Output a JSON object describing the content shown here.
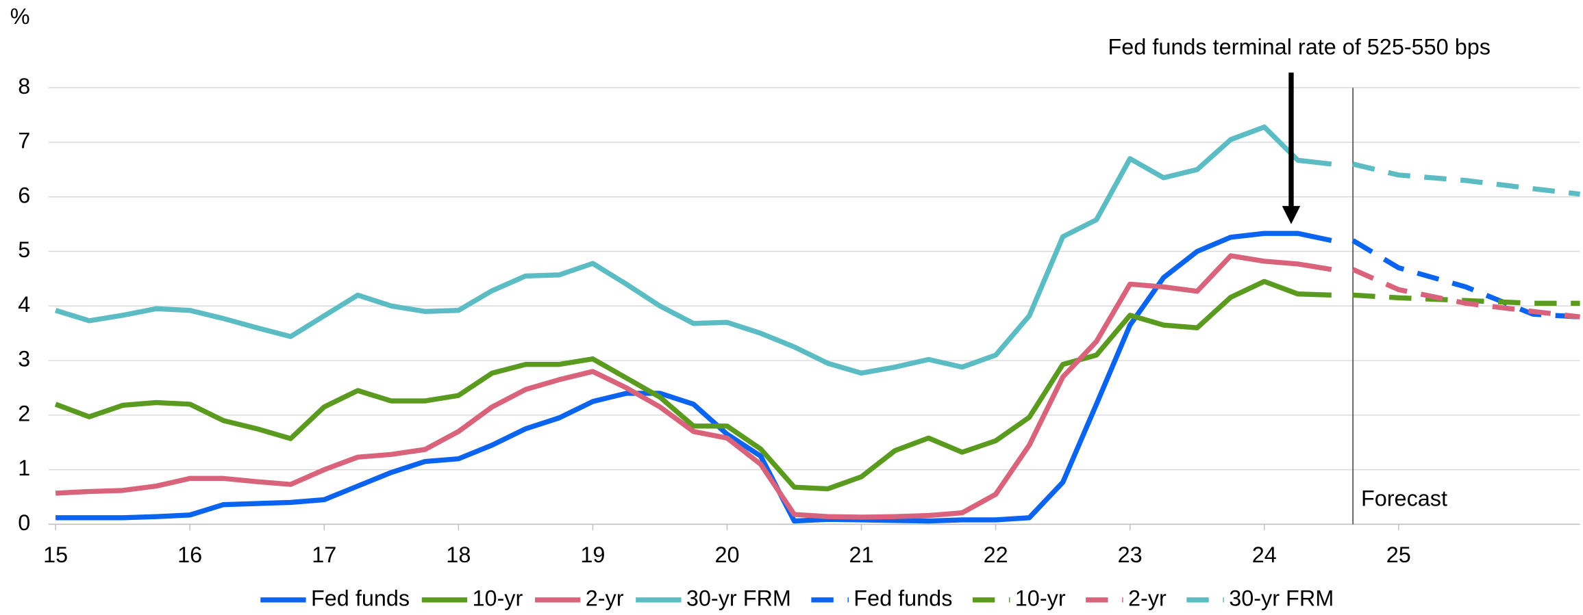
{
  "chart_data": {
    "type": "line",
    "y_unit": "%",
    "annotation": {
      "text": "Fed funds terminal rate of 525-550 bps",
      "x": 24.2,
      "y": 5.5
    },
    "forecast": {
      "label": "Forecast",
      "x": 24.66
    },
    "xlim": [
      15,
      26.35
    ],
    "xticks": [
      15,
      16,
      17,
      18,
      19,
      20,
      21,
      22,
      23,
      24,
      25
    ],
    "ylim": [
      0,
      8
    ],
    "yticks": [
      0,
      1,
      2,
      3,
      4,
      5,
      6,
      7,
      8
    ],
    "grid": true,
    "legend": "bottom",
    "series": [
      {
        "name": "Fed funds",
        "color": "#0a64f0",
        "dashed": false,
        "x": [
          15,
          15.25,
          15.5,
          15.75,
          16,
          16.25,
          16.5,
          16.75,
          17,
          17.25,
          17.5,
          17.75,
          18,
          18.25,
          18.5,
          18.75,
          19,
          19.25,
          19.5,
          19.75,
          20,
          20.25,
          20.5,
          20.75,
          21,
          21.25,
          21.5,
          21.75,
          22,
          22.25,
          22.5,
          22.75,
          23,
          23.25,
          23.5,
          23.75,
          24,
          24.25,
          24.5
        ],
        "values": [
          0.12,
          0.12,
          0.12,
          0.14,
          0.17,
          0.36,
          0.38,
          0.4,
          0.45,
          0.7,
          0.95,
          1.15,
          1.2,
          1.45,
          1.75,
          1.95,
          2.25,
          2.4,
          2.4,
          2.2,
          1.65,
          1.25,
          0.06,
          0.09,
          0.08,
          0.07,
          0.06,
          0.08,
          0.08,
          0.12,
          0.77,
          2.2,
          3.65,
          4.52,
          5.0,
          5.26,
          5.33,
          5.33,
          5.2
        ]
      },
      {
        "name": "10-yr",
        "color": "#5a9a1e",
        "dashed": false,
        "x": [
          15,
          15.25,
          15.5,
          15.75,
          16,
          16.25,
          16.5,
          16.75,
          17,
          17.25,
          17.5,
          17.75,
          18,
          18.25,
          18.5,
          18.75,
          19,
          19.25,
          19.5,
          19.75,
          20,
          20.25,
          20.5,
          20.75,
          21,
          21.25,
          21.5,
          21.75,
          22,
          22.25,
          22.5,
          22.75,
          23,
          23.25,
          23.5,
          23.75,
          24,
          24.25,
          24.5
        ],
        "values": [
          2.2,
          1.97,
          2.18,
          2.23,
          2.2,
          1.9,
          1.75,
          1.57,
          2.15,
          2.45,
          2.26,
          2.26,
          2.36,
          2.77,
          2.93,
          2.93,
          3.03,
          2.68,
          2.33,
          1.8,
          1.8,
          1.38,
          0.68,
          0.65,
          0.87,
          1.35,
          1.58,
          1.32,
          1.53,
          1.96,
          2.93,
          3.1,
          3.83,
          3.65,
          3.6,
          4.16,
          4.45,
          4.22,
          4.2
        ]
      },
      {
        "name": "2-yr",
        "color": "#d9637a",
        "dashed": false,
        "x": [
          15,
          15.25,
          15.5,
          15.75,
          16,
          16.25,
          16.5,
          16.75,
          17,
          17.25,
          17.5,
          17.75,
          18,
          18.25,
          18.5,
          18.75,
          19,
          19.25,
          19.5,
          19.75,
          20,
          20.25,
          20.5,
          20.75,
          21,
          21.25,
          21.5,
          21.75,
          22,
          22.25,
          22.5,
          22.75,
          23,
          23.25,
          23.5,
          23.75,
          24,
          24.25,
          24.5
        ],
        "values": [
          0.57,
          0.6,
          0.62,
          0.7,
          0.84,
          0.84,
          0.78,
          0.73,
          1.0,
          1.23,
          1.28,
          1.37,
          1.7,
          2.15,
          2.47,
          2.65,
          2.8,
          2.5,
          2.15,
          1.7,
          1.58,
          1.1,
          0.18,
          0.14,
          0.13,
          0.14,
          0.16,
          0.21,
          0.55,
          1.45,
          2.7,
          3.35,
          4.4,
          4.35,
          4.27,
          4.92,
          4.82,
          4.77,
          4.67
        ]
      },
      {
        "name": "30-yr FRM",
        "color": "#5bbcc4",
        "dashed": false,
        "x": [
          15,
          15.25,
          15.5,
          15.75,
          16,
          16.25,
          16.5,
          16.75,
          17,
          17.25,
          17.5,
          17.75,
          18,
          18.25,
          18.5,
          18.75,
          19,
          19.25,
          19.5,
          19.75,
          20,
          20.25,
          20.5,
          20.75,
          21,
          21.25,
          21.5,
          21.75,
          22,
          22.25,
          22.5,
          22.75,
          23,
          23.25,
          23.5,
          23.75,
          24,
          24.25,
          24.5
        ],
        "values": [
          3.92,
          3.73,
          3.83,
          3.95,
          3.92,
          3.77,
          3.6,
          3.44,
          3.82,
          4.2,
          4.0,
          3.9,
          3.92,
          4.28,
          4.55,
          4.57,
          4.78,
          4.4,
          4.0,
          3.68,
          3.7,
          3.5,
          3.25,
          2.95,
          2.77,
          2.88,
          3.02,
          2.88,
          3.1,
          3.82,
          5.27,
          5.58,
          6.7,
          6.35,
          6.5,
          7.05,
          7.28,
          6.67,
          6.6
        ]
      },
      {
        "name": "Fed funds",
        "color": "#0a64f0",
        "dashed": true,
        "x": [
          24.66,
          25,
          25.5,
          26,
          26.35
        ],
        "values": [
          5.2,
          4.7,
          4.35,
          3.85,
          3.8
        ]
      },
      {
        "name": "10-yr",
        "color": "#5a9a1e",
        "dashed": true,
        "x": [
          24.66,
          25,
          25.5,
          26,
          26.35
        ],
        "values": [
          4.2,
          4.15,
          4.1,
          4.05,
          4.05
        ]
      },
      {
        "name": "2-yr",
        "color": "#d9637a",
        "dashed": true,
        "x": [
          24.66,
          25,
          25.5,
          26,
          26.35
        ],
        "values": [
          4.67,
          4.3,
          4.05,
          3.9,
          3.8
        ]
      },
      {
        "name": "30-yr FRM",
        "color": "#5bbcc4",
        "dashed": true,
        "x": [
          24.66,
          25,
          25.5,
          26,
          26.35
        ],
        "values": [
          6.6,
          6.4,
          6.3,
          6.15,
          6.05
        ]
      }
    ]
  }
}
